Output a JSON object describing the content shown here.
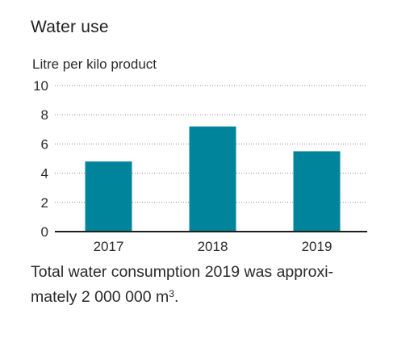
{
  "chart_data": {
    "type": "bar",
    "title": "Water use",
    "ylabel": "Litre per kilo product",
    "xlabel": "",
    "categories": [
      "2017",
      "2018",
      "2019"
    ],
    "values": [
      4.8,
      7.2,
      5.5
    ],
    "ylim": [
      0,
      10
    ],
    "yticks": [
      "0",
      "2",
      "4",
      "6",
      "8",
      "10"
    ],
    "grid": true,
    "bar_color": "#00849b"
  },
  "caption": {
    "line1": "Total water consumption 2019 was approxi-",
    "line2": "mately 2 000 000 m",
    "sup": "3",
    "end": "."
  }
}
